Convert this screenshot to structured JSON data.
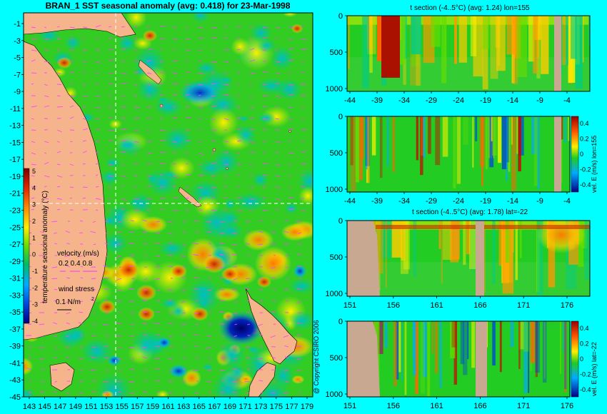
{
  "chart_data": [
    {
      "type": "heatmap",
      "title": "BRAN_1 SST seasonal anomaly (avg: 0.418) for 23-Mar-1998",
      "x_ticks": [
        "143",
        "145",
        "147",
        "149",
        "151",
        "153",
        "155",
        "157",
        "159",
        "161",
        "163",
        "165",
        "167",
        "169",
        "171",
        "173",
        "175",
        "177",
        "179"
      ],
      "y_ticks": [
        "-1",
        "-3",
        "-5",
        "-7",
        "-9",
        "-11",
        "-13",
        "-15",
        "-17",
        "-19",
        "-21",
        "-23",
        "-25",
        "-27",
        "-29",
        "-31",
        "-33",
        "-35",
        "-37",
        "-39",
        "-41",
        "-43",
        "-45"
      ],
      "colorbar_label": "temperature seasonal anomaly (°C)",
      "colorbar_ticks": [
        "5",
        "4",
        "3",
        "2",
        "1",
        "0",
        "-1",
        "-2",
        "-3",
        "-4"
      ],
      "legend_velocity_label": "velocity (m/s)",
      "legend_velocity_values": "0.2 0.4 0.8",
      "legend_wind_label": "wind stress",
      "legend_wind_value": "0.1 N/m",
      "section_lon": 155,
      "section_lat": -22
    },
    {
      "type": "heatmap",
      "title": "t section (-4..5°C) (avg: 1.24) lon=155",
      "x_ticks": [
        "-44",
        "-39",
        "-34",
        "-29",
        "-24",
        "-19",
        "-14",
        "-9",
        "-4"
      ],
      "y_ticks": [
        "0",
        "500",
        "1000"
      ]
    },
    {
      "type": "heatmap",
      "title": "",
      "ylabel_right": "vel. E (m/s) lon=155",
      "x_ticks": [
        "-44",
        "-39",
        "-34",
        "-29",
        "-24",
        "-19",
        "-14",
        "-9",
        "-4"
      ],
      "y_ticks": [
        "0",
        "500",
        "1000"
      ],
      "colorbar_ticks": [
        "0.4",
        "0.2",
        "0",
        "-0.2",
        "-0.4"
      ]
    },
    {
      "type": "heatmap",
      "title": "t section (-4..5°C) (avg: 1.78) lat=-22",
      "x_ticks": [
        "151",
        "156",
        "161",
        "166",
        "171",
        "176"
      ],
      "y_ticks": [
        "0",
        "500",
        "1000"
      ]
    },
    {
      "type": "heatmap",
      "title": "",
      "ylabel_right": "vel. E (m/s) lat=-22",
      "x_ticks": [
        "151",
        "156",
        "161",
        "166",
        "171",
        "176"
      ],
      "y_ticks": [
        "0",
        "500",
        "1000"
      ],
      "colorbar_ticks": [
        "0.4",
        "0.2",
        "0",
        "-0.2",
        "-0.4"
      ]
    }
  ],
  "copyright": "@ Copyright CSIRO 2006",
  "colors": {
    "background": "#00ffff",
    "land": "#f5b48c",
    "section_land": "#c8a890",
    "field_base": "#22cc22"
  }
}
